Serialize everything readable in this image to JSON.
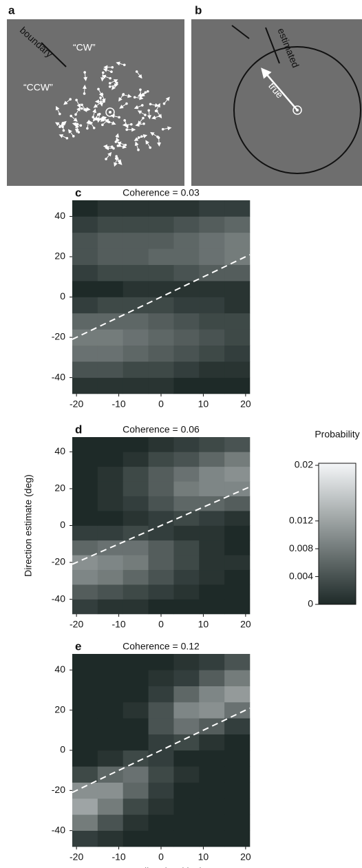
{
  "panels": {
    "a": {
      "label": "a",
      "boundary": "boundary",
      "cw": "“CW”",
      "ccw": "“CCW”"
    },
    "b": {
      "label": "b",
      "estimated": "estimated",
      "true": "true"
    }
  },
  "colorbar": {
    "title": "Probability",
    "lim": [
      0,
      0.02
    ],
    "ticks": [
      0,
      0.004,
      0.008,
      0.012,
      0.02
    ]
  },
  "chart_data": [
    {
      "type": "heatmap",
      "label": "c",
      "title": "Coherence = 0.03",
      "xbins": [
        -21,
        -15,
        -9,
        -3,
        3,
        9,
        15,
        21
      ],
      "ybins": [
        -48,
        -40,
        -32,
        -24,
        -16,
        -8,
        0,
        8,
        16,
        24,
        32,
        40,
        48
      ],
      "values": [
        [
          0.001,
          0.001,
          0.001,
          0.001,
          0,
          0,
          0
        ],
        [
          0.004,
          0.004,
          0.003,
          0.003,
          0.002,
          0.001,
          0.001
        ],
        [
          0.007,
          0.007,
          0.006,
          0.005,
          0.004,
          0.003,
          0.002
        ],
        [
          0.008,
          0.008,
          0.007,
          0.006,
          0.005,
          0.004,
          0.003
        ],
        [
          0.006,
          0.006,
          0.006,
          0.005,
          0.004,
          0.003,
          0.003
        ],
        [
          0.002,
          0.003,
          0.003,
          0.003,
          0.002,
          0.002,
          0.001
        ],
        [
          0,
          0,
          0.001,
          0.001,
          0.001,
          0.001,
          0.001
        ],
        [
          0.002,
          0.003,
          0.003,
          0.003,
          0.004,
          0.005,
          0.005
        ],
        [
          0.004,
          0.005,
          0.005,
          0.006,
          0.006,
          0.007,
          0.008
        ],
        [
          0.004,
          0.005,
          0.005,
          0.005,
          0.006,
          0.007,
          0.008
        ],
        [
          0.002,
          0.003,
          0.003,
          0.003,
          0.004,
          0.005,
          0.006
        ],
        [
          0,
          0.001,
          0.001,
          0.001,
          0.001,
          0.002,
          0.002
        ]
      ],
      "xlim": [
        -21,
        21
      ],
      "ylim": [
        -48,
        48
      ],
      "xticks": [
        -20,
        -10,
        0,
        10,
        20
      ],
      "yticks": [
        -40,
        -20,
        0,
        20,
        40
      ],
      "diagonal": {
        "x": [
          -21,
          21
        ],
        "y": [
          -21,
          21
        ]
      }
    },
    {
      "type": "heatmap",
      "label": "d",
      "title": "Coherence = 0.06",
      "ylabel": "Direction estimate (deg)",
      "xbins": [
        -21,
        -15,
        -9,
        -3,
        3,
        9,
        15,
        21
      ],
      "ybins": [
        -48,
        -40,
        -32,
        -24,
        -16,
        -8,
        0,
        8,
        16,
        24,
        32,
        40,
        48
      ],
      "values": [
        [
          0.002,
          0.001,
          0.001,
          0,
          0,
          0,
          0
        ],
        [
          0.005,
          0.004,
          0.003,
          0.002,
          0.001,
          0,
          0
        ],
        [
          0.009,
          0.008,
          0.006,
          0.004,
          0.002,
          0.001,
          0
        ],
        [
          0.01,
          0.009,
          0.008,
          0.005,
          0.003,
          0.001,
          0.001
        ],
        [
          0.006,
          0.007,
          0.007,
          0.005,
          0.003,
          0.001,
          0
        ],
        [
          0.002,
          0.002,
          0.003,
          0.002,
          0.001,
          0.001,
          0
        ],
        [
          0,
          0,
          0.001,
          0.002,
          0.003,
          0.002,
          0.001
        ],
        [
          0,
          0.001,
          0.002,
          0.004,
          0.006,
          0.006,
          0.005
        ],
        [
          0,
          0.001,
          0.003,
          0.005,
          0.008,
          0.009,
          0.009
        ],
        [
          0,
          0.001,
          0.003,
          0.005,
          0.007,
          0.009,
          0.01
        ],
        [
          0,
          0,
          0.001,
          0.003,
          0.004,
          0.006,
          0.008
        ],
        [
          0,
          0,
          0,
          0.001,
          0.002,
          0.003,
          0.004
        ]
      ],
      "xlim": [
        -21,
        21
      ],
      "ylim": [
        -48,
        48
      ],
      "xticks": [
        -20,
        -10,
        0,
        10,
        20
      ],
      "yticks": [
        -40,
        -20,
        0,
        20,
        40
      ],
      "diagonal": {
        "x": [
          -21,
          21
        ],
        "y": [
          -21,
          21
        ]
      }
    },
    {
      "type": "heatmap",
      "label": "e",
      "title": "Coherence = 0.12",
      "xlabel": "True direction (deg)",
      "xbins": [
        -21,
        -15,
        -9,
        -3,
        3,
        9,
        15,
        21
      ],
      "ybins": [
        -48,
        -40,
        -32,
        -24,
        -16,
        -8,
        0,
        8,
        16,
        24,
        32,
        40,
        48
      ],
      "values": [
        [
          0.002,
          0.001,
          0,
          0,
          0,
          0,
          0
        ],
        [
          0.008,
          0.004,
          0.001,
          0,
          0,
          0,
          0
        ],
        [
          0.012,
          0.008,
          0.003,
          0.001,
          0,
          0,
          0
        ],
        [
          0.01,
          0.01,
          0.006,
          0.002,
          0,
          0,
          0
        ],
        [
          0.003,
          0.006,
          0.007,
          0.003,
          0.001,
          0,
          0
        ],
        [
          0,
          0.001,
          0.003,
          0.002,
          0,
          0,
          0
        ],
        [
          0,
          0,
          0,
          0.002,
          0.003,
          0.001,
          0
        ],
        [
          0,
          0,
          0,
          0.004,
          0.007,
          0.005,
          0.002
        ],
        [
          0,
          0,
          0.001,
          0.004,
          0.009,
          0.01,
          0.007
        ],
        [
          0,
          0,
          0,
          0.002,
          0.006,
          0.009,
          0.011
        ],
        [
          0,
          0,
          0,
          0.001,
          0.002,
          0.005,
          0.008
        ],
        [
          0,
          0,
          0,
          0,
          0.001,
          0.002,
          0.004
        ]
      ],
      "xlim": [
        -21,
        21
      ],
      "ylim": [
        -48,
        48
      ],
      "xticks": [
        -20,
        -10,
        0,
        10,
        20
      ],
      "yticks": [
        -40,
        -20,
        0,
        20,
        40
      ],
      "diagonal": {
        "x": [
          -21,
          21
        ],
        "y": [
          -21,
          21
        ]
      }
    }
  ]
}
